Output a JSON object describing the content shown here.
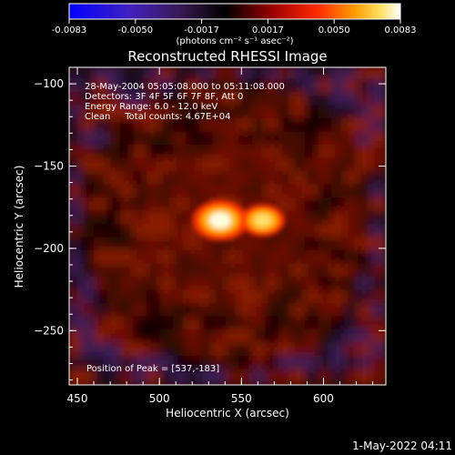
{
  "chart_data": {
    "type": "heatmap",
    "title": "Reconstructed RHESSI Image",
    "xlabel": "Heliocentric X (arcsec)",
    "ylabel": "Heliocentric Y (arcsec)",
    "xlim": [
      445,
      638
    ],
    "ylim": [
      -283,
      -90
    ],
    "x_ticks": [
      450,
      500,
      550,
      600
    ],
    "y_ticks": [
      -100,
      -150,
      -200,
      -250
    ],
    "colorbar": {
      "min": -0.0083,
      "max": 0.0083,
      "ticks": [
        "-0.0083",
        "-0.0050",
        "-0.0017",
        "0.0017",
        "0.0050",
        "0.0083"
      ],
      "units": "(photons cm⁻² s⁻¹ asec⁻²)",
      "colormap": "RHESSI (blue-purple-black-red-yellow-white)"
    },
    "annotations": [
      "28-May-2004 05:05:08.000 to 05:11:08.000",
      "Detectors: 3F 4F 5F 6F 7F 8F, Att 0",
      "Energy Range: 6.0 - 12.0 keV",
      "Clean     Total counts: 4.67E+04"
    ],
    "peak_label": "Position of Peak = [537,-183]",
    "peak": [
      537,
      -183
    ],
    "sources": [
      {
        "x": 537,
        "y": -183,
        "value": 0.0083
      },
      {
        "x": 563,
        "y": -183,
        "value": 0.0062
      }
    ]
  },
  "footer_timestamp": "1-May-2022 04:11",
  "colors": {
    "background": "#000000",
    "foreground": "#ffffff",
    "peak": "#ffffe0",
    "plot_bg": "#2a0800",
    "low": "#3a1a55"
  }
}
